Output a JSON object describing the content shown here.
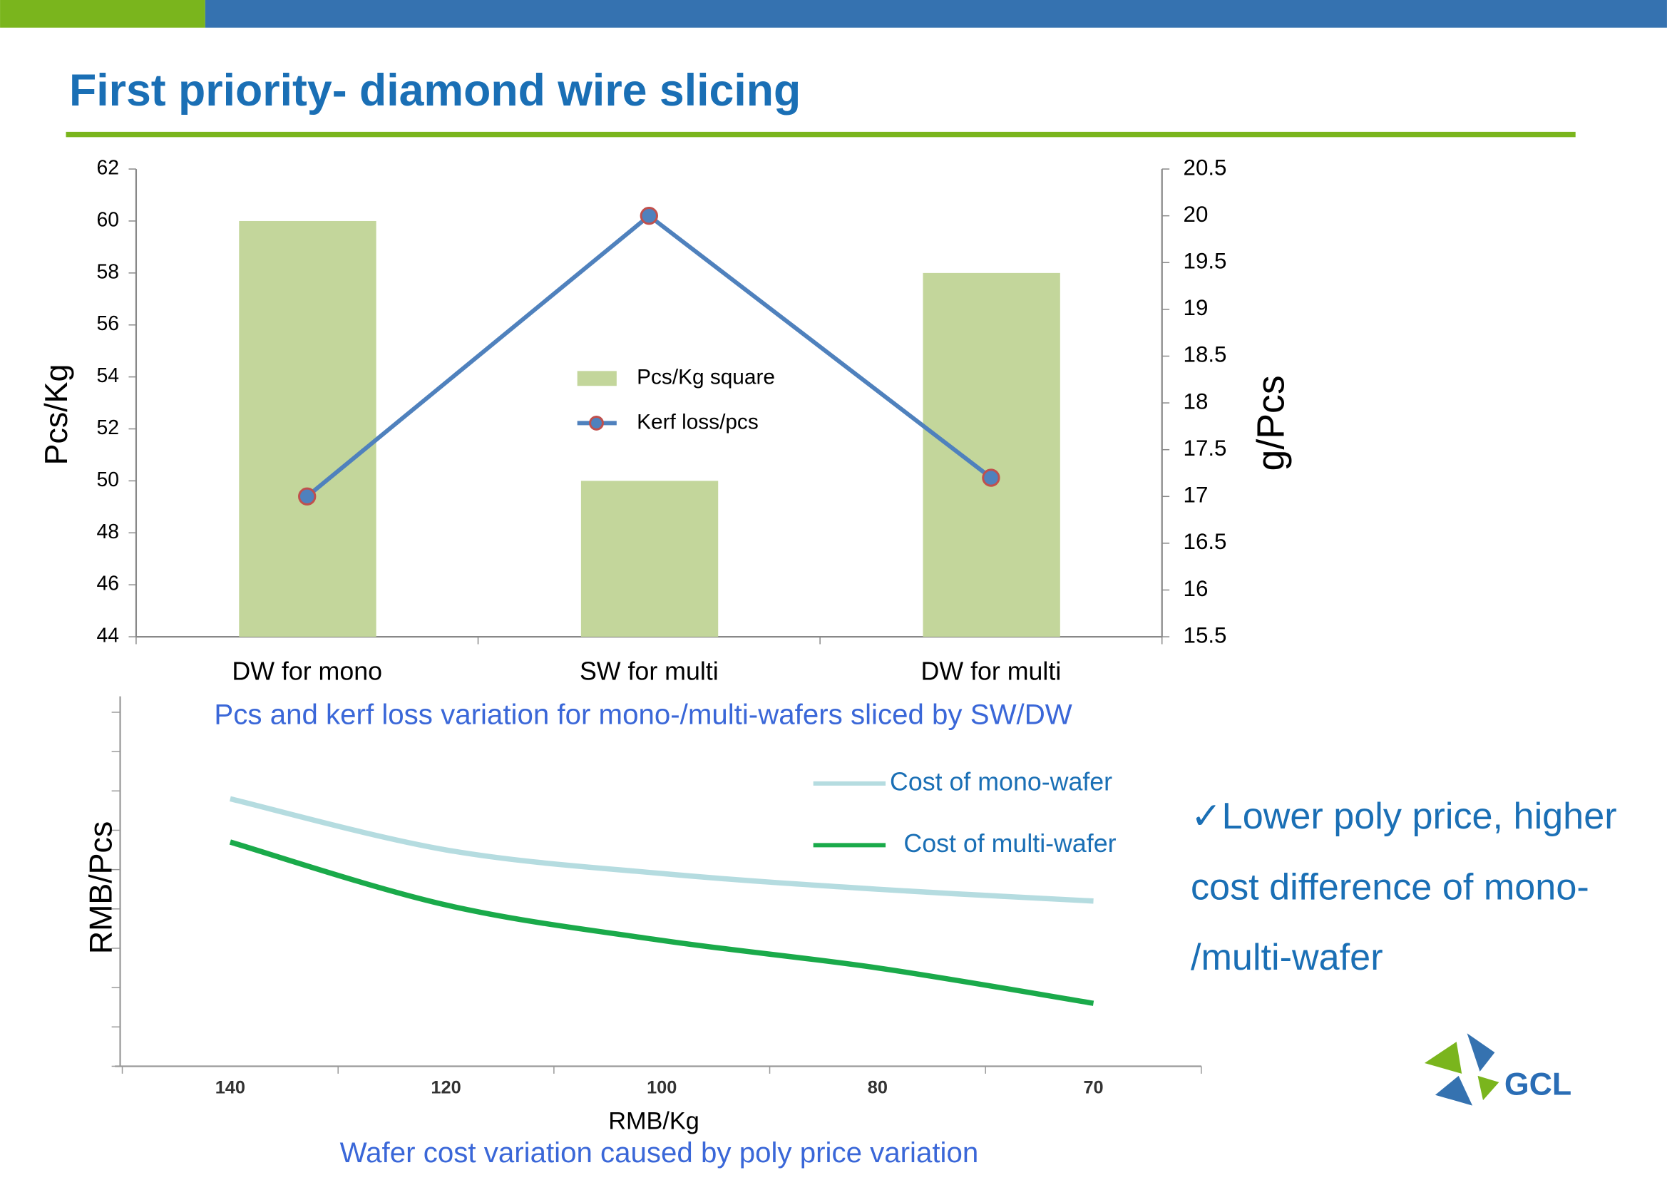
{
  "title": "First priority- diamond wire slicing",
  "bullet": [
    "✓Lower poly price, higher",
    "cost difference of mono-",
    "/multi-wafer"
  ],
  "logo": "GCL",
  "chart_data": [
    {
      "type": "bar",
      "caption": "Pcs and kerf loss variation for mono-/multi-wafers sliced by SW/DW",
      "ylabel": "Pcs/Kg",
      "y2label": "g/Pcs",
      "categories": [
        "DW for mono",
        "SW for multi",
        "DW for multi"
      ],
      "series": [
        {
          "name": "Pcs/Kg square",
          "type": "bar",
          "color": "#c3d69b",
          "values": [
            60,
            50,
            58
          ]
        },
        {
          "name": "Kerf loss/pcs",
          "type": "line",
          "axis": "y2",
          "color": "#4f81bd",
          "marker_edge_color": "#c0504d",
          "values": [
            17,
            20,
            17.2
          ]
        }
      ],
      "ylim": [
        44,
        62
      ],
      "yticks": [
        44,
        46,
        48,
        50,
        52,
        54,
        56,
        58,
        60,
        62
      ],
      "y2lim": [
        15.5,
        20.5
      ],
      "y2ticks": [
        15.5,
        16,
        16.5,
        17,
        17.5,
        18,
        18.5,
        19,
        19.5,
        20,
        20.5
      ]
    },
    {
      "type": "line",
      "caption": "Wafer cost variation caused by poly price variation",
      "xlabel": "RMB/Kg",
      "ylabel": "RMB/Pcs",
      "categories": [
        "140",
        "120",
        "100",
        "80",
        "70"
      ],
      "series": [
        {
          "name": "Cost of mono-wafer",
          "color": "#b5dce0",
          "values": [
            6.8,
            5.5,
            4.9,
            4.5,
            4.2
          ]
        },
        {
          "name": "Cost of multi-wafer",
          "color": "#1aaa4a",
          "values": [
            5.7,
            4.1,
            3.2,
            2.5,
            1.6
          ]
        }
      ],
      "ylim": [
        0,
        9
      ]
    }
  ]
}
